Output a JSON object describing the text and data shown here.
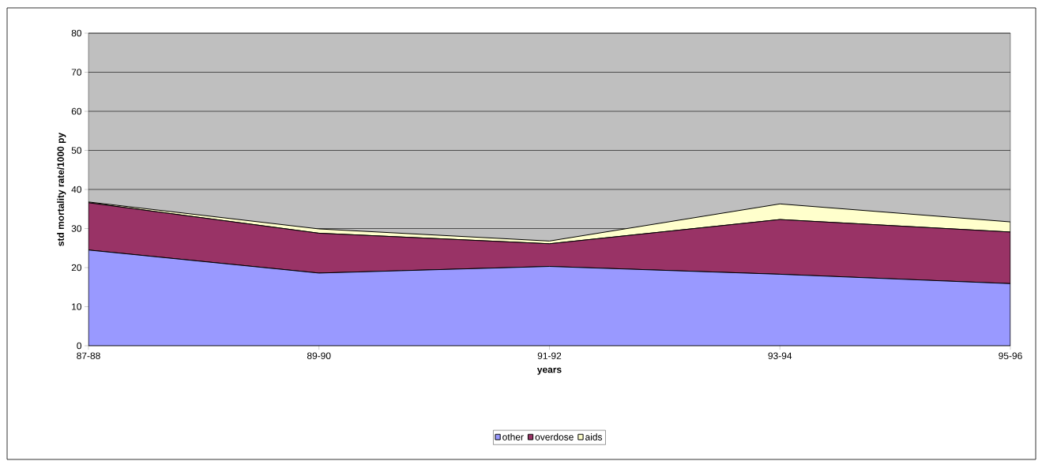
{
  "chart_data": {
    "type": "area",
    "stacked": true,
    "xlabel": "years",
    "ylabel": "std mortality rate/1000 py",
    "categories": [
      "87-88",
      "89-90",
      "91-92",
      "93-94",
      "95-96"
    ],
    "series": [
      {
        "name": "other",
        "color": "#9999ff",
        "values": [
          24.5,
          18.6,
          20.3,
          18.3,
          15.9
        ]
      },
      {
        "name": "overdose",
        "color": "#993366",
        "values": [
          12.1,
          10.2,
          5.8,
          14.0,
          13.2
        ]
      },
      {
        "name": "aids",
        "color": "#ffffcc",
        "values": [
          0.2,
          1.1,
          0.7,
          4.0,
          2.6
        ]
      }
    ],
    "ylim": [
      0,
      80
    ],
    "yticks": [
      0,
      10,
      20,
      30,
      40,
      50,
      60,
      70,
      80
    ],
    "grid": "y",
    "legend": "bottom"
  }
}
